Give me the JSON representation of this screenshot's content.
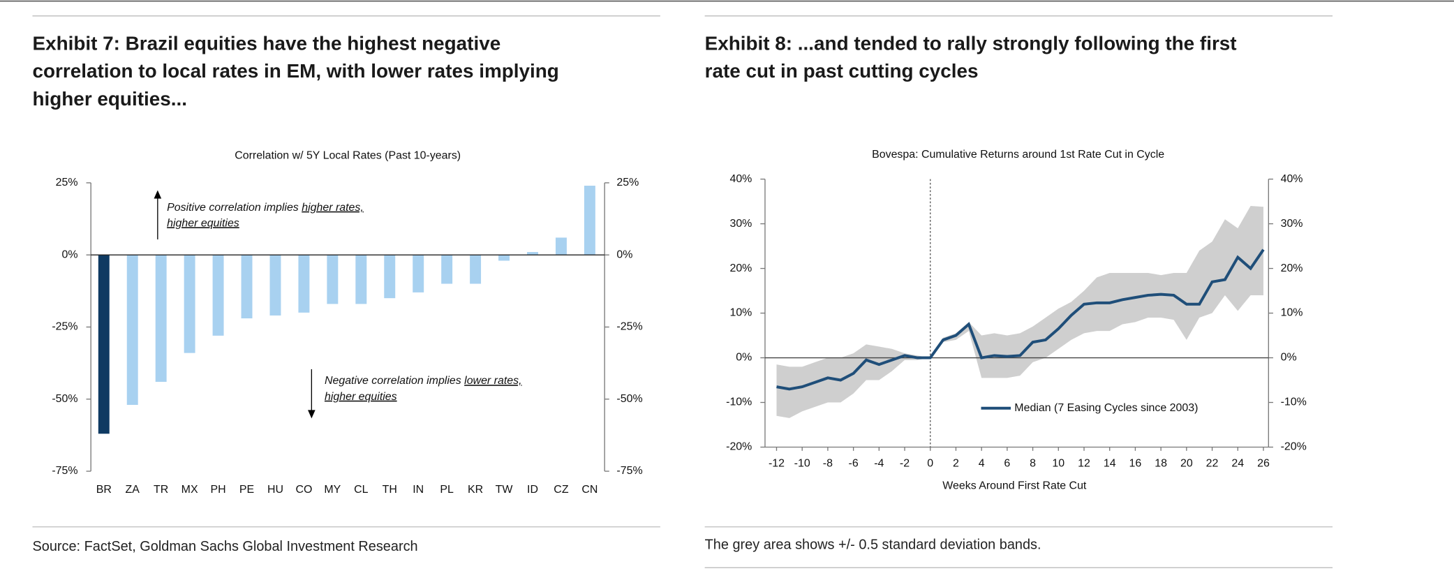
{
  "chart_data": [
    {
      "type": "bar",
      "title_lines": [
        "Exhibit 7: Brazil equities have the highest negative",
        "correlation to local rates in EM, with lower rates implying",
        "higher equities..."
      ],
      "subtitle": "Correlation w/ 5Y Local Rates (Past 10-years)",
      "categories": [
        "BR",
        "ZA",
        "TR",
        "MX",
        "PH",
        "PE",
        "HU",
        "CO",
        "MY",
        "CL",
        "TH",
        "IN",
        "PL",
        "KR",
        "TW",
        "ID",
        "CZ",
        "CN"
      ],
      "values": [
        -62,
        -52,
        -44,
        -34,
        -28,
        -22,
        -21,
        -20,
        -17,
        -17,
        -15,
        -13,
        -10,
        -10,
        -2,
        1,
        6,
        24
      ],
      "colors": [
        "#0f3a62",
        "#a8d1f0",
        "#a8d1f0",
        "#a8d1f0",
        "#a8d1f0",
        "#a8d1f0",
        "#a8d1f0",
        "#a8d1f0",
        "#a8d1f0",
        "#a8d1f0",
        "#a8d1f0",
        "#a8d1f0",
        "#a8d1f0",
        "#a8d1f0",
        "#a8d1f0",
        "#a8d1f0",
        "#a8d1f0",
        "#a8d1f0"
      ],
      "ylim": [
        -75,
        25
      ],
      "yticks": [
        {
          "value": -75,
          "label": "-75%"
        },
        {
          "value": -50,
          "label": "-50%"
        },
        {
          "value": -25,
          "label": "-25%"
        },
        {
          "value": 0,
          "label": "0%"
        },
        {
          "value": 25,
          "label": "25%"
        }
      ],
      "y2lim": [
        -75,
        25
      ],
      "y2ticks": [
        {
          "value": -75,
          "label": "-75%"
        },
        {
          "value": -50,
          "label": "-50%"
        },
        {
          "value": -25,
          "label": "-25%"
        },
        {
          "value": 0,
          "label": "0%"
        },
        {
          "value": 25,
          "label": "25%"
        }
      ],
      "annotations": [
        {
          "lines": [
            [
              {
                "text": "Positive correlation implies ",
                "underline": false
              },
              {
                "text": "higher rates,",
                "underline": true
              }
            ],
            [
              {
                "text": "higher equities",
                "underline": true
              }
            ]
          ]
        },
        {
          "lines": [
            [
              {
                "text": "Negative correlation implies ",
                "underline": false
              },
              {
                "text": "lower rates,",
                "underline": true
              }
            ],
            [
              {
                "text": "higher equities",
                "underline": true
              }
            ]
          ]
        }
      ],
      "source": "Source: FactSet, Goldman Sachs Global Investment Research"
    },
    {
      "type": "line",
      "title_lines": [
        "Exhibit 8: ...and tended to rally strongly following the first",
        "rate cut in past cutting cycles"
      ],
      "subtitle": "Bovespa: Cumulative Returns around 1st Rate Cut in Cycle",
      "x_label": "Weeks Around First Rate Cut",
      "x": [
        -12,
        -11,
        -10,
        -9,
        -8,
        -7,
        -6,
        -5,
        -4,
        -3,
        -2,
        -1,
        0,
        1,
        2,
        3,
        4,
        5,
        6,
        7,
        8,
        9,
        10,
        11,
        12,
        13,
        14,
        15,
        16,
        17,
        18,
        19,
        20,
        21,
        22,
        23,
        24,
        25,
        26
      ],
      "series": [
        {
          "name": "Median (7 Easing Cycles since 2003)",
          "color": "#1f4e79",
          "values": [
            -6.5,
            -7,
            -6.5,
            -5.5,
            -4.5,
            -5,
            -3.5,
            -0.5,
            -1.5,
            -0.5,
            0.5,
            0,
            0,
            4,
            5,
            7.5,
            0,
            0.5,
            0.3,
            0.5,
            3.5,
            4,
            6.5,
            9.5,
            12,
            12.3,
            12.3,
            13,
            13.5,
            14,
            14.2,
            14,
            12,
            12,
            17,
            17.5,
            22.5,
            20,
            24.2
          ]
        }
      ],
      "band": {
        "color": "#cfcfcf",
        "upper": [
          -1.5,
          -2,
          -2,
          -1,
          0,
          0,
          1,
          3,
          2.5,
          2,
          1,
          0.5,
          0,
          4.5,
          5.5,
          8,
          5,
          5.5,
          5,
          5.5,
          7,
          9,
          11,
          12.5,
          15,
          18,
          19,
          19,
          19,
          19,
          18.5,
          19,
          19,
          24,
          26,
          31,
          29,
          34,
          33.8
        ],
        "lower": [
          -13,
          -13.5,
          -12,
          -11,
          -10,
          -10,
          -8,
          -5,
          -5,
          -3,
          -0.5,
          -0.5,
          0,
          3.5,
          4,
          6,
          -4.5,
          -4.5,
          -4.5,
          -4,
          -1,
          0,
          2,
          4,
          5.5,
          6,
          6,
          7.5,
          8,
          9,
          9,
          8.5,
          4,
          9,
          10,
          14,
          10.5,
          14,
          14
        ]
      },
      "vline": 0,
      "xlim": [
        -12.9,
        26.4
      ],
      "xticks": [
        -12,
        -10,
        -8,
        -6,
        -4,
        -2,
        0,
        2,
        4,
        6,
        8,
        10,
        12,
        14,
        16,
        18,
        20,
        22,
        24,
        26
      ],
      "ylim": [
        -20,
        40
      ],
      "yticks": [
        {
          "value": -20,
          "label": "-20%"
        },
        {
          "value": -10,
          "label": "-10%"
        },
        {
          "value": 0,
          "label": "0%"
        },
        {
          "value": 10,
          "label": "10%"
        },
        {
          "value": 20,
          "label": "20%"
        },
        {
          "value": 30,
          "label": "30%"
        },
        {
          "value": 40,
          "label": "40%"
        }
      ],
      "y2lim": [
        -20,
        40
      ],
      "y2ticks": [
        {
          "value": -20,
          "label": "-20%"
        },
        {
          "value": -10,
          "label": "-10%"
        },
        {
          "value": 0,
          "label": "0%"
        },
        {
          "value": 10,
          "label": "10%"
        },
        {
          "value": 20,
          "label": "20%"
        },
        {
          "value": 30,
          "label": "30%"
        },
        {
          "value": 40,
          "label": "40%"
        }
      ],
      "note": "The grey area shows +/- 0.5 standard deviation bands."
    }
  ]
}
